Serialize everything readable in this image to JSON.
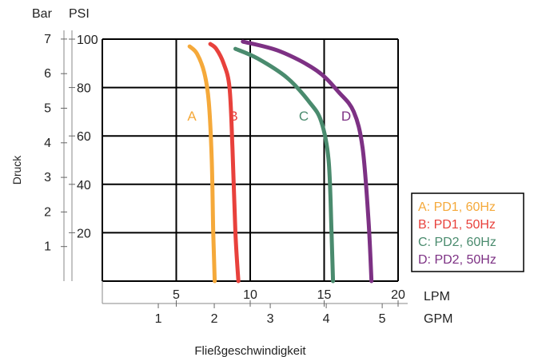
{
  "chart_data": {
    "type": "line",
    "ylabel": "Druck",
    "xlabel": "Fließgeschwindigkeit",
    "y_unit_bar": "Bar",
    "y_unit_psi": "PSI",
    "x_unit_lpm": "LPM",
    "x_unit_gpm": "GPM",
    "y_ticks_bar": [
      "1",
      "2",
      "3",
      "4",
      "5",
      "6",
      "7"
    ],
    "y_ticks_psi": [
      "20",
      "40",
      "60",
      "80",
      "100"
    ],
    "x_ticks_lpm": [
      "5",
      "10",
      "15",
      "20"
    ],
    "x_ticks_gpm": [
      "1",
      "2",
      "3",
      "4",
      "5"
    ],
    "xlim_lpm": [
      0,
      20
    ],
    "ylim_psi": [
      0,
      100
    ],
    "grid": true,
    "legend_position": "right",
    "series": [
      {
        "id": "A",
        "name": "A: PD1, 60Hz",
        "letter": "A",
        "color": "#f5a93a",
        "x": [
          5.9,
          6.4,
          6.9,
          7.2,
          7.4,
          7.5,
          7.6
        ],
        "y": [
          97,
          94,
          86,
          74,
          50,
          20,
          0
        ]
      },
      {
        "id": "B",
        "name": "B: PD1, 50Hz",
        "letter": "B",
        "color": "#e8413c",
        "x": [
          7.3,
          7.7,
          8.2,
          8.6,
          8.8,
          9.0,
          9.2
        ],
        "y": [
          98,
          96,
          90,
          80,
          55,
          20,
          0
        ]
      },
      {
        "id": "C",
        "name": "C: PD2, 60Hz",
        "letter": "C",
        "color": "#4a8b6e",
        "x": [
          9.0,
          10.5,
          12.5,
          14.0,
          14.8,
          15.3,
          15.5,
          15.6
        ],
        "y": [
          96,
          92,
          84,
          74,
          66,
          50,
          20,
          0
        ]
      },
      {
        "id": "D",
        "name": "D: PD2, 50Hz",
        "letter": "D",
        "color": "#7d3184",
        "x": [
          9.5,
          12.0,
          14.5,
          16.0,
          17.0,
          17.6,
          18.0,
          18.2
        ],
        "y": [
          99,
          95,
          87,
          78,
          70,
          55,
          25,
          0
        ]
      }
    ]
  }
}
